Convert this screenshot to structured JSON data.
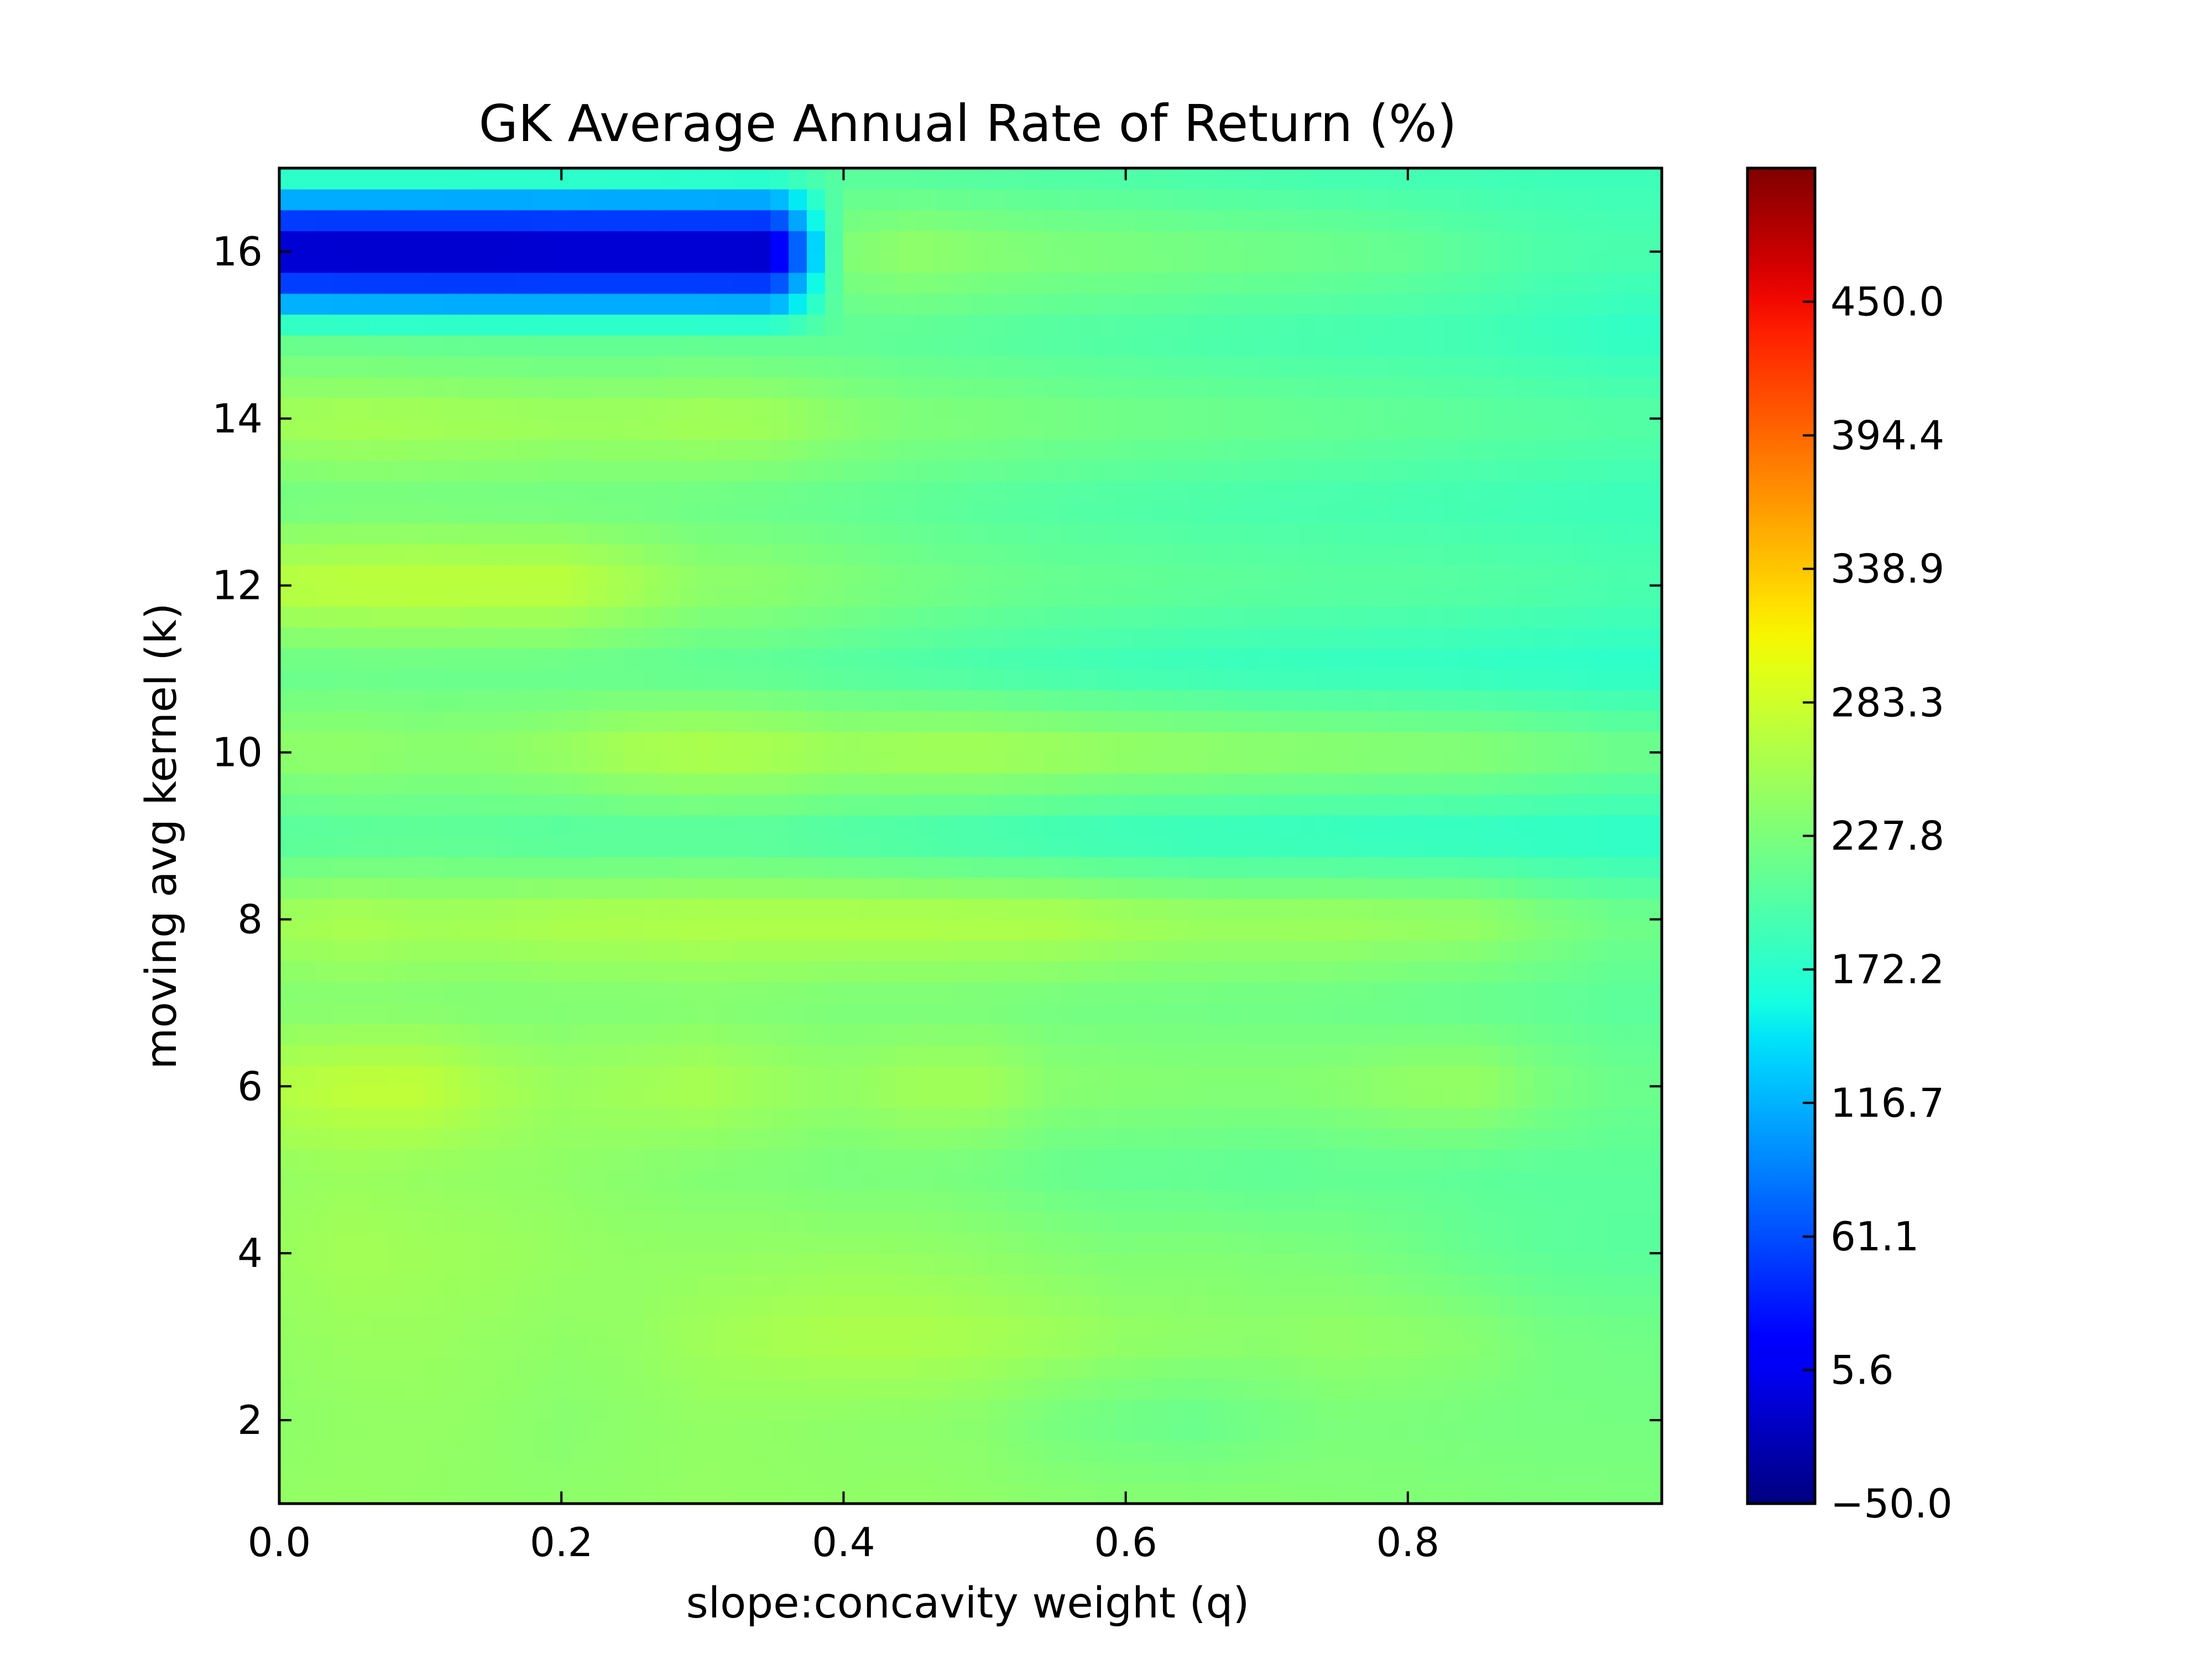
{
  "chart_data": {
    "type": "heatmap",
    "title": "GK Average Annual Rate of Return (%)",
    "xlabel": "slope:concavity weight (q)",
    "ylabel": "moving avg kernel (k)",
    "xlim": [
      0.0,
      0.98
    ],
    "ylim": [
      1,
      17
    ],
    "x_ticks": [
      {
        "value": 0.0,
        "label": "0.0"
      },
      {
        "value": 0.2,
        "label": "0.2"
      },
      {
        "value": 0.4,
        "label": "0.4"
      },
      {
        "value": 0.6,
        "label": "0.6"
      },
      {
        "value": 0.8,
        "label": "0.8"
      }
    ],
    "y_ticks": [
      {
        "value": 2,
        "label": "2"
      },
      {
        "value": 4,
        "label": "4"
      },
      {
        "value": 6,
        "label": "6"
      },
      {
        "value": 8,
        "label": "8"
      },
      {
        "value": 10,
        "label": "10"
      },
      {
        "value": 12,
        "label": "12"
      },
      {
        "value": 14,
        "label": "14"
      },
      {
        "value": 16,
        "label": "16"
      }
    ],
    "colormap": "jet",
    "vmin": -50.0,
    "vmax": 505.6,
    "colorbar_ticks": [
      {
        "value": -50.0,
        "label": "−50.0"
      },
      {
        "value": 5.6,
        "label": "5.6"
      },
      {
        "value": 61.1,
        "label": "61.1"
      },
      {
        "value": 116.7,
        "label": "116.7"
      },
      {
        "value": 172.2,
        "label": "172.2"
      },
      {
        "value": 227.8,
        "label": "227.8"
      },
      {
        "value": 283.3,
        "label": "283.3"
      },
      {
        "value": 338.9,
        "label": "338.9"
      },
      {
        "value": 394.4,
        "label": "394.4"
      },
      {
        "value": 450.0,
        "label": "450.0"
      }
    ],
    "x": [
      0.0,
      0.05,
      0.1,
      0.15,
      0.2,
      0.25,
      0.3,
      0.35,
      0.4,
      0.45,
      0.5,
      0.55,
      0.6,
      0.65,
      0.7,
      0.75,
      0.8,
      0.85,
      0.9,
      0.95
    ],
    "y": [
      1,
      2,
      3,
      4,
      5,
      6,
      7,
      8,
      9,
      10,
      11,
      12,
      13,
      14,
      15,
      16,
      17
    ],
    "z": [
      [
        243,
        245,
        243,
        241,
        240,
        242,
        244,
        243,
        242,
        243,
        241,
        238,
        236,
        236,
        236,
        233,
        232,
        231,
        230,
        229
      ],
      [
        240,
        243,
        244,
        242,
        236,
        240,
        243,
        242,
        240,
        239,
        236,
        224,
        218,
        214,
        221,
        228,
        227,
        225,
        224,
        224
      ],
      [
        244,
        248,
        248,
        245,
        242,
        244,
        253,
        258,
        262,
        262,
        258,
        252,
        245,
        242,
        240,
        244,
        241,
        236,
        224,
        221
      ],
      [
        248,
        255,
        252,
        250,
        246,
        243,
        243,
        244,
        245,
        244,
        240,
        235,
        231,
        232,
        230,
        228,
        221,
        213,
        207,
        205
      ],
      [
        245,
        248,
        245,
        243,
        241,
        236,
        232,
        230,
        225,
        226,
        222,
        214,
        211,
        210,
        207,
        210,
        210,
        207,
        206,
        206
      ],
      [
        268,
        276,
        277,
        260,
        249,
        254,
        260,
        250,
        245,
        255,
        255,
        238,
        236,
        235,
        235,
        238,
        246,
        248,
        228,
        218
      ],
      [
        232,
        233,
        232,
        230,
        231,
        231,
        232,
        230,
        227,
        226,
        225,
        222,
        221,
        220,
        219,
        217,
        214,
        211,
        209,
        205
      ],
      [
        255,
        262,
        257,
        258,
        263,
        264,
        266,
        266,
        266,
        266,
        266,
        265,
        257,
        252,
        252,
        253,
        250,
        248,
        232,
        221
      ],
      [
        200,
        202,
        204,
        203,
        199,
        199,
        199,
        198,
        194,
        190,
        186,
        182,
        179,
        177,
        176,
        175,
        174,
        173,
        172,
        172
      ],
      [
        243,
        245,
        240,
        242,
        250,
        262,
        267,
        263,
        255,
        259,
        260,
        255,
        250,
        247,
        244,
        242,
        240,
        238,
        230,
        222
      ],
      [
        213,
        214,
        214,
        213,
        212,
        210,
        207,
        205,
        200,
        196,
        192,
        188,
        185,
        182,
        180,
        179,
        178,
        176,
        174,
        173
      ],
      [
        273,
        276,
        277,
        276,
        276,
        260,
        243,
        240,
        232,
        225,
        220,
        215,
        213,
        210,
        208,
        206,
        205,
        203,
        200,
        196
      ],
      [
        220,
        222,
        222,
        221,
        220,
        219,
        217,
        214,
        211,
        207,
        203,
        200,
        197,
        195,
        193,
        192,
        190,
        188,
        186,
        184
      ],
      [
        256,
        260,
        258,
        256,
        253,
        254,
        258,
        255,
        240,
        232,
        230,
        226,
        222,
        220,
        217,
        214,
        212,
        208,
        205,
        203
      ],
      [
        210,
        208,
        207,
        206,
        205,
        205,
        205,
        204,
        207,
        205,
        202,
        199,
        197,
        194,
        192,
        190,
        189,
        187,
        182,
        176
      ],
      [
        -40,
        -42,
        -42,
        -42,
        -40,
        -40,
        -40,
        -42,
        234,
        246,
        238,
        232,
        230,
        226,
        223,
        220,
        215,
        206,
        198,
        195
      ],
      [
        205,
        206,
        206,
        205,
        205,
        204,
        203,
        203,
        202,
        200,
        198,
        196,
        194,
        192,
        190,
        188,
        187,
        186,
        185,
        184
      ]
    ]
  }
}
